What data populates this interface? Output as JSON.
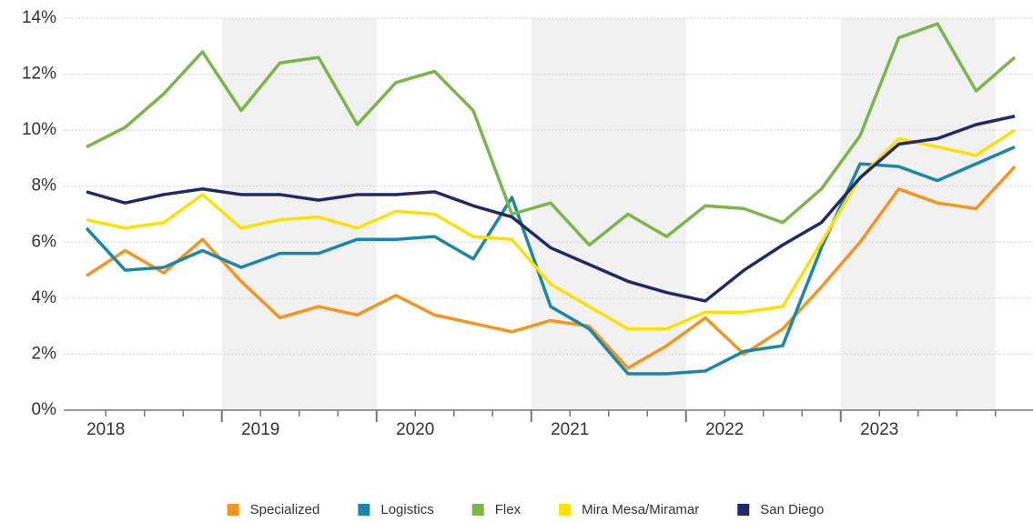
{
  "chart_data": {
    "type": "line",
    "categories": [
      "2018",
      null,
      null,
      null,
      "2019",
      null,
      null,
      null,
      "2020",
      null,
      null,
      null,
      "2021",
      null,
      null,
      null,
      "2022",
      null,
      null,
      null,
      "2023",
      null,
      null,
      null,
      null
    ],
    "series": [
      {
        "name": "Specialized",
        "color": "#f7941d",
        "values": [
          4.8,
          5.7,
          4.9,
          6.1,
          4.6,
          3.3,
          3.7,
          3.4,
          4.1,
          3.4,
          3.1,
          2.8,
          3.2,
          3.0,
          1.5,
          2.3,
          3.3,
          2.0,
          2.9,
          4.4,
          6.0,
          7.9,
          7.4,
          7.2,
          8.7
        ]
      },
      {
        "name": "Logistics",
        "color": "#1a87a8",
        "values": [
          6.5,
          5.0,
          5.1,
          5.7,
          5.1,
          5.6,
          5.6,
          6.1,
          6.1,
          6.2,
          5.4,
          7.6,
          3.7,
          2.9,
          1.3,
          1.3,
          1.4,
          2.1,
          2.3,
          5.8,
          8.8,
          8.7,
          8.2,
          8.8,
          9.4
        ]
      },
      {
        "name": "Flex",
        "color": "#7ab648",
        "values": [
          9.4,
          10.1,
          11.3,
          12.8,
          10.7,
          12.4,
          12.6,
          10.2,
          11.7,
          12.1,
          10.7,
          7.0,
          7.4,
          5.9,
          7.0,
          6.2,
          7.3,
          7.2,
          6.7,
          7.9,
          9.8,
          13.3,
          13.8,
          11.4,
          12.6
        ]
      },
      {
        "name": "Mira Mesa/Miramar",
        "color": "#ffe100",
        "values": [
          6.8,
          6.5,
          6.7,
          7.7,
          6.5,
          6.8,
          6.9,
          6.5,
          7.1,
          7.0,
          6.2,
          6.1,
          4.5,
          3.7,
          2.9,
          2.9,
          3.5,
          3.5,
          3.7,
          6.0,
          8.3,
          9.7,
          9.4,
          9.1,
          10.0
        ]
      },
      {
        "name": "San Diego",
        "color": "#1f2a6b",
        "values": [
          7.8,
          7.4,
          7.7,
          7.9,
          7.7,
          7.7,
          7.5,
          7.7,
          7.7,
          7.8,
          7.3,
          6.9,
          5.8,
          5.2,
          4.6,
          4.2,
          3.9,
          5.0,
          5.9,
          6.7,
          8.3,
          9.5,
          9.7,
          10.2,
          10.5
        ]
      }
    ],
    "ylim": [
      0,
      14
    ],
    "yticks": [
      {
        "value": 0,
        "label": "0%"
      },
      {
        "value": 2,
        "label": "2%"
      },
      {
        "value": 4,
        "label": "4%"
      },
      {
        "value": 6,
        "label": "6%"
      },
      {
        "value": 8,
        "label": "8%"
      },
      {
        "value": 10,
        "label": "10%"
      },
      {
        "value": 12,
        "label": "12%"
      },
      {
        "value": 14,
        "label": "14%"
      }
    ],
    "grid": true,
    "legend": "bottom"
  }
}
